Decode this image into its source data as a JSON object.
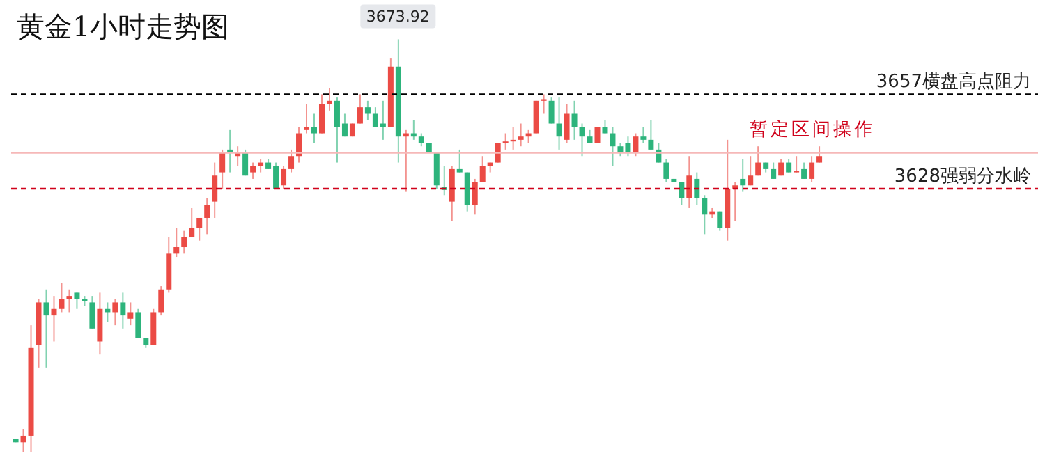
{
  "chart_data": {
    "type": "candlestick",
    "title": "黄金1小时走势图",
    "categories": [
      null,
      null,
      null,
      null,
      null,
      null,
      null,
      null,
      null,
      null,
      null,
      null,
      null,
      null,
      null,
      null,
      null,
      null,
      null,
      null,
      null,
      null,
      null,
      null,
      null,
      null,
      null,
      null,
      null,
      null,
      null,
      null,
      null,
      null,
      null,
      null,
      null,
      null,
      null,
      null,
      null,
      null,
      null,
      null,
      null,
      null,
      null,
      null,
      null,
      null,
      null,
      null,
      null,
      null,
      null,
      null,
      null,
      null,
      null,
      null,
      null,
      null,
      null,
      null,
      null,
      null,
      null,
      null,
      null,
      null,
      null,
      null,
      null,
      null,
      null,
      null,
      null,
      null,
      null,
      null,
      null,
      null,
      null,
      null,
      null,
      null,
      null,
      null,
      null,
      null,
      null,
      null,
      null,
      null,
      null,
      null,
      null,
      null,
      null,
      null,
      null,
      null,
      null,
      null,
      null,
      null
    ],
    "ohlc": [
      [
        3551,
        3551,
        3550,
        3550
      ],
      [
        3550,
        3554,
        3547,
        3552
      ],
      [
        3552,
        3586,
        3547,
        3579
      ],
      [
        3580,
        3594,
        3573,
        3593
      ],
      [
        3593,
        3597,
        3573,
        3589
      ],
      [
        3589,
        3595,
        3581,
        3591
      ],
      [
        3591,
        3599,
        3590,
        3594
      ],
      [
        3594,
        3597,
        3590,
        3595
      ],
      [
        3596,
        3596,
        3591,
        3594
      ],
      [
        3594,
        3595,
        3592,
        3593.5
      ],
      [
        3593,
        3595,
        3585,
        3585
      ],
      [
        3581,
        3596,
        3577,
        3591
      ],
      [
        3591,
        3593,
        3587,
        3590
      ],
      [
        3590,
        3594,
        3586,
        3593
      ],
      [
        3593,
        3596,
        3585,
        3589
      ],
      [
        3588,
        3593,
        3586,
        3590
      ],
      [
        3590,
        3591,
        3582,
        3582
      ],
      [
        3582,
        3582,
        3579,
        3580
      ],
      [
        3580,
        3591,
        3580,
        3590
      ],
      [
        3590,
        3598,
        3589,
        3597
      ],
      [
        3597,
        3613,
        3596,
        3608
      ],
      [
        3608,
        3616,
        3607,
        3610
      ],
      [
        3610,
        3615,
        3608,
        3613
      ],
      [
        3613,
        3622,
        3613,
        3616
      ],
      [
        3616,
        3619,
        3612,
        3619
      ],
      [
        3619,
        3625,
        3614,
        3623
      ],
      [
        3624,
        3636,
        3619,
        3632
      ],
      [
        3633,
        3640,
        3628,
        3639
      ],
      [
        3640,
        3646,
        3633,
        3639
      ],
      [
        3638,
        3641,
        3635,
        3639
      ],
      [
        3639,
        3640,
        3632,
        3632
      ],
      [
        3633,
        3636,
        3631,
        3635
      ],
      [
        3635,
        3637,
        3633,
        3636
      ],
      [
        3636,
        3637,
        3634,
        3634
      ],
      [
        3635,
        3636,
        3628,
        3628
      ],
      [
        3629,
        3635,
        3628,
        3634
      ],
      [
        3634,
        3640,
        3633,
        3638
      ],
      [
        3638,
        3647,
        3636,
        3645
      ],
      [
        3646,
        3654,
        3645,
        3647
      ],
      [
        3647,
        3651,
        3642,
        3645
      ],
      [
        3645,
        3657,
        3645,
        3654
      ],
      [
        3654,
        3659,
        3652,
        3655
      ],
      [
        3655,
        3656,
        3636,
        3647
      ],
      [
        3648,
        3651,
        3644,
        3644
      ],
      [
        3644,
        3648,
        3644,
        3648
      ],
      [
        3648,
        3657,
        3648,
        3653
      ],
      [
        3653,
        3655,
        3649,
        3651
      ],
      [
        3651,
        3653,
        3647,
        3647
      ],
      [
        3648,
        3655,
        3643,
        3647
      ],
      [
        3647,
        3668,
        3647,
        3665.5
      ],
      [
        3665.5,
        3673.92,
        3636,
        3644
      ],
      [
        3644,
        3646,
        3627,
        3645
      ],
      [
        3645,
        3649,
        3643,
        3644
      ],
      [
        3644,
        3645,
        3641,
        3642
      ],
      [
        3642,
        3642,
        3639,
        3639
      ],
      [
        3639,
        3639,
        3628,
        3629
      ],
      [
        3628.4,
        3635,
        3626,
        3627.6
      ],
      [
        3624,
        3635,
        3618,
        3634
      ],
      [
        3634,
        3640,
        3633,
        3633
      ],
      [
        3633,
        3633,
        3621,
        3623
      ],
      [
        3623,
        3631,
        3620,
        3630
      ],
      [
        3630,
        3638,
        3630,
        3635
      ],
      [
        3635,
        3636,
        3633,
        3636
      ],
      [
        3636,
        3642,
        3636,
        3642
      ],
      [
        3642,
        3645,
        3640,
        3642.5
      ],
      [
        3642.5,
        3647,
        3640,
        3643
      ],
      [
        3643,
        3648,
        3641,
        3644
      ],
      [
        3644,
        3646,
        3642,
        3645
      ],
      [
        3645,
        3655,
        3645,
        3655
      ],
      [
        3655,
        3657,
        3651,
        3655.5
      ],
      [
        3655,
        3656,
        3648,
        3648
      ],
      [
        3648,
        3656,
        3640,
        3644
      ],
      [
        3643,
        3654,
        3642,
        3651
      ],
      [
        3651,
        3655,
        3643,
        3647
      ],
      [
        3647,
        3648,
        3638,
        3644
      ],
      [
        3644,
        3646,
        3642,
        3642
      ],
      [
        3642,
        3647,
        3642,
        3647
      ],
      [
        3647,
        3649,
        3645,
        3645
      ],
      [
        3645,
        3647,
        3635,
        3641
      ],
      [
        3641,
        3642,
        3638,
        3639
      ],
      [
        3642,
        3644,
        3638,
        3639
      ],
      [
        3639,
        3645,
        3638,
        3644
      ],
      [
        3644,
        3647,
        3642,
        3643
      ],
      [
        3643,
        3649,
        3640,
        3640
      ],
      [
        3640,
        3642,
        3636,
        3636
      ],
      [
        3636,
        3637,
        3630,
        3631
      ],
      [
        3631,
        3631,
        3630,
        3630
      ],
      [
        3630,
        3630,
        3623,
        3625
      ],
      [
        3625,
        3638,
        3622,
        3632
      ],
      [
        3631,
        3633,
        3623,
        3625
      ],
      [
        3625,
        3626,
        3614,
        3620
      ],
      [
        3620,
        3622,
        3619,
        3621
      ],
      [
        3621,
        3621,
        3615,
        3616
      ],
      [
        3616,
        3643,
        3612,
        3628
      ],
      [
        3628,
        3630,
        3618,
        3629
      ],
      [
        3631,
        3637,
        3627,
        3629
      ],
      [
        3629,
        3638,
        3629,
        3632
      ],
      [
        3632,
        3641,
        3632,
        3636
      ],
      [
        3636,
        3636,
        3633,
        3634
      ],
      [
        3634,
        3636,
        3631,
        3631
      ],
      [
        3632,
        3637,
        3632,
        3636
      ],
      [
        3636,
        3637,
        3633,
        3633
      ],
      [
        3633,
        3638,
        3633,
        3633.5
      ],
      [
        3634,
        3636,
        3631,
        3631
      ],
      [
        3631,
        3638,
        3630,
        3636
      ],
      [
        3636,
        3641,
        3636,
        3638
      ]
    ],
    "colors": [
      "#2db47c",
      "#eb4b45",
      "#eb4b45",
      "#eb4b45",
      "#2db47c",
      "#eb4b45",
      "#eb4b45",
      "#eb4b45",
      "#2db47c",
      "#2db47c",
      "#2db47c",
      "#eb4b45",
      "#2db47c",
      "#eb4b45",
      "#2db47c",
      "#eb4b45",
      "#2db47c",
      "#2db47c",
      "#eb4b45",
      "#eb4b45",
      "#eb4b45",
      "#eb4b45",
      "#eb4b45",
      "#eb4b45",
      "#eb4b45",
      "#eb4b45",
      "#eb4b45",
      "#eb4b45",
      "#2db47c",
      "#eb4b45",
      "#2db47c",
      "#eb4b45",
      "#eb4b45",
      "#2db47c",
      "#2db47c",
      "#eb4b45",
      "#eb4b45",
      "#eb4b45",
      "#eb4b45",
      "#2db47c",
      "#eb4b45",
      "#eb4b45",
      "#2db47c",
      "#2db47c",
      "#eb4b45",
      "#eb4b45",
      "#2db47c",
      "#2db47c",
      "#2db47c",
      "#eb4b45",
      "#2db47c",
      "#eb4b45",
      "#2db47c",
      "#2db47c",
      "#2db47c",
      "#2db47c",
      "#2db47c",
      "#eb4b45",
      "#2db47c",
      "#2db47c",
      "#eb4b45",
      "#eb4b45",
      "#eb4b45",
      "#eb4b45",
      "#eb4b45",
      "#eb4b45",
      "#eb4b45",
      "#eb4b45",
      "#eb4b45",
      "#eb4b45",
      "#2db47c",
      "#2db47c",
      "#eb4b45",
      "#2db47c",
      "#2db47c",
      "#2db47c",
      "#eb4b45",
      "#2db47c",
      "#2db47c",
      "#2db47c",
      "#2db47c",
      "#eb4b45",
      "#2db47c",
      "#2db47c",
      "#2db47c",
      "#2db47c",
      "#2db47c",
      "#2db47c",
      "#eb4b45",
      "#2db47c",
      "#2db47c",
      "#eb4b45",
      "#2db47c",
      "#eb4b45",
      "#eb4b45",
      "#2db47c",
      "#eb4b45",
      "#eb4b45",
      "#2db47c",
      "#2db47c",
      "#eb4b45",
      "#2db47c",
      "#eb4b45",
      "#2db47c",
      "#eb4b45",
      "#eb4b45"
    ],
    "ylim": [
      3543,
      3686
    ],
    "tick_labels": false,
    "ref_lines": [
      {
        "axis": "y",
        "value": 3657,
        "label": "3657横盘高点阻力",
        "color": "#000000",
        "line_style": "dashed"
      },
      {
        "axis": "y",
        "value": 3628,
        "label": "3628强弱分水岭",
        "color": "#d0021b",
        "line_style": "dashed"
      },
      {
        "axis": "y",
        "value": 3639,
        "color": "#f6b8b8",
        "line_style": "solid"
      }
    ],
    "annotations": [
      "暂定区间操作",
      {
        "text": "3673.92",
        "y": 3673.92
      }
    ]
  }
}
